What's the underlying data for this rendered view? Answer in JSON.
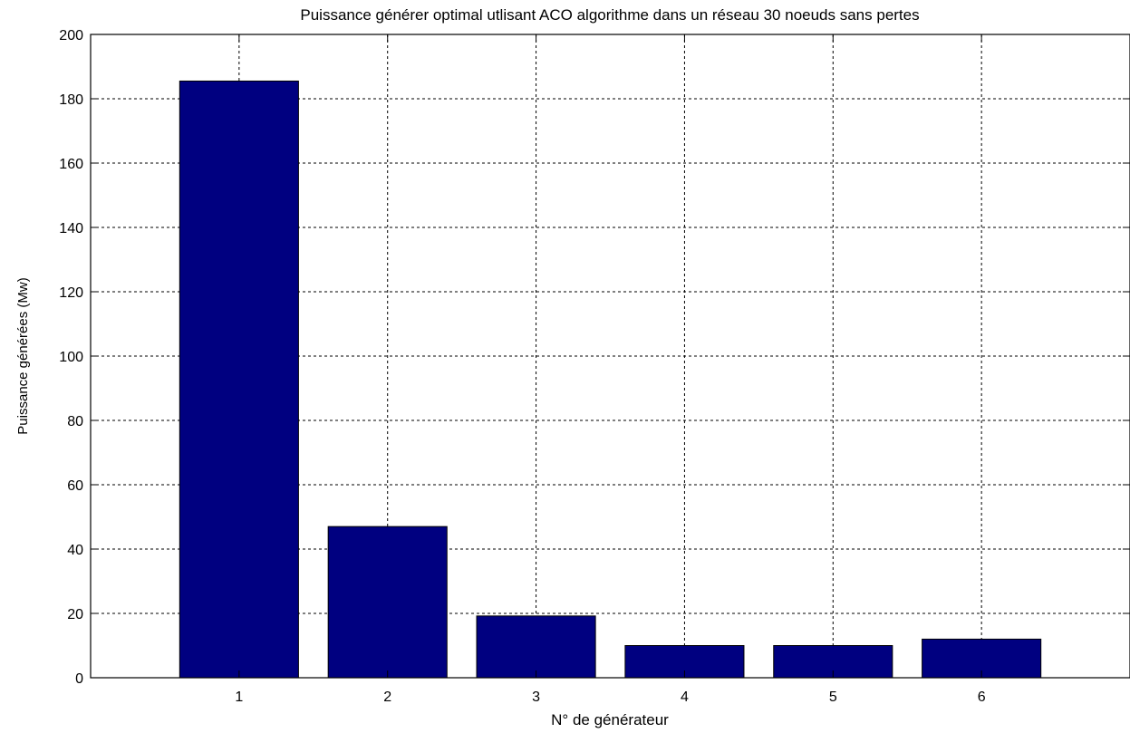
{
  "chart_data": {
    "type": "bar",
    "title": "Puissance générer optimal utlisant ACO algorithme dans un réseau 30 noeuds sans pertes",
    "xlabel": "N° de générateur",
    "ylabel": "Puissance générées (Mw)",
    "categories": [
      "1",
      "2",
      "3",
      "4",
      "5",
      "6"
    ],
    "values": [
      185.5,
      47,
      19.2,
      10,
      10,
      12
    ],
    "ylim": [
      0,
      200
    ],
    "xlim": [
      0,
      7
    ],
    "yticks": [
      0,
      20,
      40,
      60,
      80,
      100,
      120,
      140,
      160,
      180,
      200
    ],
    "grid": true,
    "bar_color": "#000080",
    "grid_color": "#000000"
  }
}
